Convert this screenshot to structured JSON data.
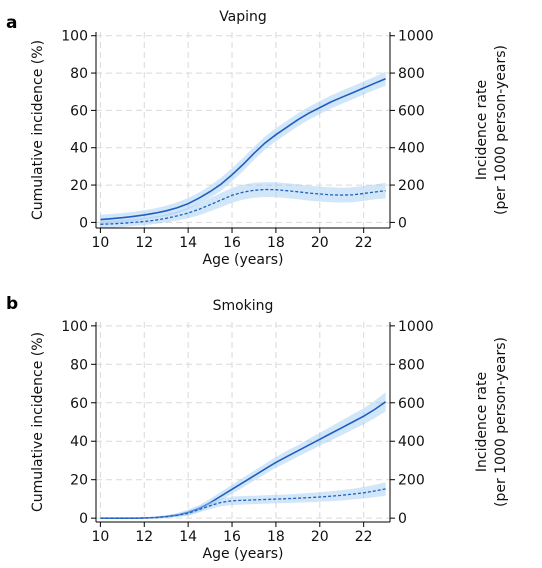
{
  "chart_data": [
    {
      "panel_label": "a",
      "type": "line",
      "title": "Vaping",
      "xlabel": "Age (years)",
      "ylabel_left": "Cumulative incidence (%)",
      "ylabel_right": [
        "Incidence rate",
        "(per 1000 person-years)"
      ],
      "xlim": [
        9.8,
        23.2
      ],
      "ylim_left": [
        -3,
        102
      ],
      "ylim_right": [
        -30,
        1020
      ],
      "x_ticks": [
        10,
        12,
        14,
        16,
        18,
        20,
        22
      ],
      "y_ticks_left": [
        0,
        20,
        40,
        60,
        80,
        100
      ],
      "y_ticks_right": [
        0,
        200,
        400,
        600,
        800,
        1000
      ],
      "grid": true,
      "accent_color": "#1f5fbf",
      "band_color": "#9cc8f5",
      "series": [
        {
          "style": "solid",
          "axis": "left",
          "x": [
            10,
            10.5,
            11,
            11.5,
            12,
            12.5,
            13,
            13.5,
            14,
            14.5,
            15,
            15.5,
            16,
            16.5,
            17,
            17.5,
            18,
            18.5,
            19,
            19.5,
            20,
            20.5,
            21,
            21.5,
            22,
            22.5,
            23
          ],
          "y": [
            1.5,
            2,
            2.5,
            3.2,
            4,
            5,
            6.2,
            7.8,
            10,
            13,
            16.5,
            20.5,
            25.5,
            31,
            37,
            42.5,
            47,
            51,
            55,
            58.5,
            61.5,
            64.5,
            67,
            69.5,
            72,
            74.5,
            77
          ],
          "ci_halfwidth": [
            2.5,
            2.5,
            2.5,
            2.5,
            2.5,
            2.5,
            2.8,
            3,
            3,
            3,
            3.2,
            3.5,
            3.5,
            3.5,
            3.5,
            3.5,
            3.5,
            3.5,
            3.5,
            3.5,
            3.5,
            3.5,
            3.5,
            3.5,
            3.5,
            3.5,
            3.8
          ]
        },
        {
          "style": "dashed",
          "axis": "right",
          "x": [
            10,
            10.5,
            11,
            11.5,
            12,
            12.5,
            13,
            13.5,
            14,
            14.5,
            15,
            15.5,
            16,
            16.5,
            17,
            17.5,
            18,
            18.5,
            19,
            19.5,
            20,
            20.5,
            21,
            21.5,
            22,
            22.5,
            23
          ],
          "y": [
            -10,
            -8,
            -5,
            0,
            5,
            12,
            22,
            35,
            50,
            70,
            95,
            120,
            145,
            162,
            172,
            176,
            175,
            170,
            164,
            157,
            152,
            148,
            146,
            148,
            155,
            163,
            170
          ],
          "ci_halfwidth": [
            20,
            20,
            20,
            20,
            20,
            20,
            22,
            25,
            28,
            32,
            35,
            38,
            40,
            40,
            40,
            40,
            40,
            40,
            40,
            40,
            40,
            40,
            40,
            40,
            40,
            40,
            42
          ]
        }
      ]
    },
    {
      "panel_label": "b",
      "type": "line",
      "title": "Smoking",
      "xlabel": "Age (years)",
      "ylabel_left": "Cumulative incidence (%)",
      "ylabel_right": [
        "Incidence rate",
        "(per 1000 person-years)"
      ],
      "xlim": [
        9.8,
        23.2
      ],
      "ylim_left": [
        -2,
        102
      ],
      "ylim_right": [
        -20,
        1020
      ],
      "x_ticks": [
        10,
        12,
        14,
        16,
        18,
        20,
        22
      ],
      "y_ticks_left": [
        0,
        20,
        40,
        60,
        80,
        100
      ],
      "y_ticks_right": [
        0,
        200,
        400,
        600,
        800,
        1000
      ],
      "grid": true,
      "accent_color": "#1f5fbf",
      "band_color": "#9cc8f5",
      "series": [
        {
          "style": "solid",
          "axis": "left",
          "x": [
            10,
            10.5,
            11,
            11.5,
            12,
            12.5,
            13,
            13.5,
            14,
            14.5,
            15,
            15.5,
            16,
            16.5,
            17,
            17.5,
            18,
            18.5,
            19,
            19.5,
            20,
            20.5,
            21,
            21.5,
            22,
            22.5,
            23
          ],
          "y": [
            0,
            0,
            0,
            0,
            0.1,
            0.3,
            0.8,
            1.6,
            3,
            5,
            8,
            11.5,
            15,
            18.5,
            22,
            25.5,
            29,
            32,
            35,
            38,
            41,
            44,
            47,
            50,
            53,
            56.5,
            60.5
          ],
          "ci_halfwidth": [
            0.3,
            0.3,
            0.3,
            0.3,
            0.4,
            0.5,
            0.8,
            1,
            1.5,
            1.8,
            2,
            2.2,
            2.4,
            2.5,
            2.6,
            2.7,
            2.8,
            3,
            3,
            3.2,
            3.4,
            3.6,
            3.8,
            4,
            4.2,
            4.5,
            5
          ]
        },
        {
          "style": "dashed",
          "axis": "right",
          "x": [
            10,
            10.5,
            11,
            11.5,
            12,
            12.5,
            13,
            13.5,
            14,
            14.5,
            15,
            15.5,
            16,
            16.5,
            17,
            17.5,
            18,
            18.5,
            19,
            19.5,
            20,
            20.5,
            21,
            21.5,
            22,
            22.5,
            23
          ],
          "y": [
            0,
            0,
            0,
            0,
            1,
            3,
            8,
            15,
            25,
            45,
            65,
            82,
            90,
            93,
            95,
            97,
            99,
            101,
            104,
            107,
            110,
            114,
            119,
            125,
            132,
            141,
            152
          ],
          "ci_halfwidth": [
            2,
            2,
            2,
            2,
            3,
            4,
            6,
            8,
            12,
            15,
            18,
            20,
            22,
            22,
            22,
            22,
            22,
            22,
            23,
            24,
            25,
            26,
            27,
            28,
            30,
            32,
            35
          ]
        }
      ]
    }
  ]
}
